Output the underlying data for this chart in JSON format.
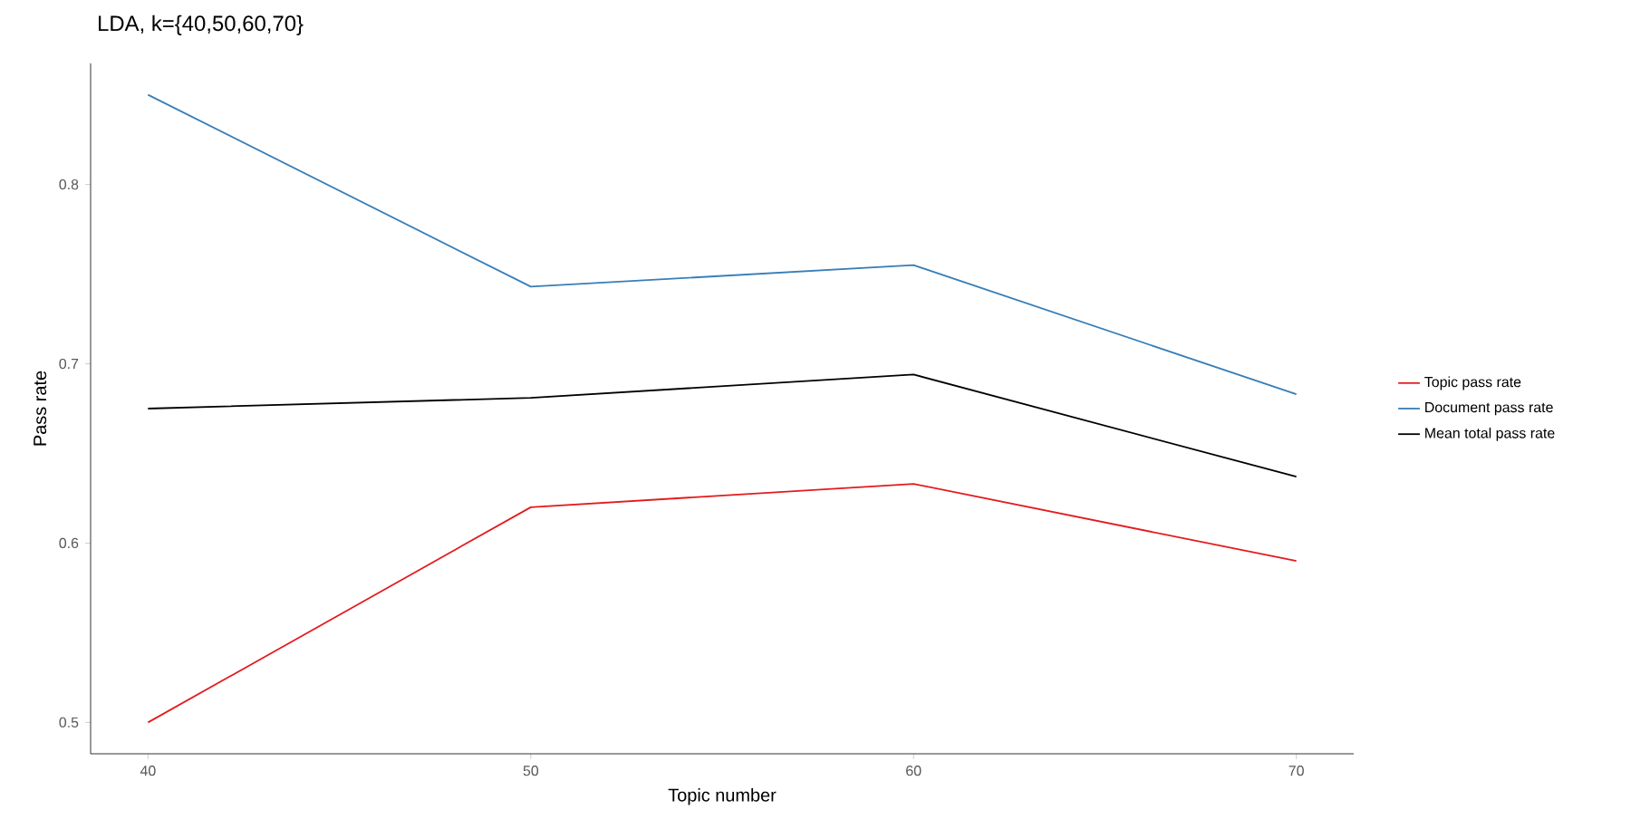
{
  "chart_data": {
    "type": "line",
    "title": "LDA, k={40,50,60,70}",
    "xlabel": "Topic number",
    "ylabel": "Pass rate",
    "x": [
      40,
      50,
      60,
      70
    ],
    "series": [
      {
        "name": "Topic pass rate",
        "color": "#e41a1c",
        "values": [
          0.5,
          0.62,
          0.633,
          0.59
        ]
      },
      {
        "name": "Document pass rate",
        "color": "#377eb8",
        "values": [
          0.85,
          0.743,
          0.755,
          0.683
        ]
      },
      {
        "name": "Mean total pass rate",
        "color": "#000000",
        "values": [
          0.675,
          0.681,
          0.694,
          0.637
        ]
      }
    ],
    "xlim": [
      38.5,
      71.5
    ],
    "ylim": [
      0.4825,
      0.8675
    ],
    "xticks": [
      40,
      50,
      60,
      70
    ],
    "yticks": [
      0.5,
      0.6,
      0.7,
      0.8
    ],
    "legend": "right"
  }
}
